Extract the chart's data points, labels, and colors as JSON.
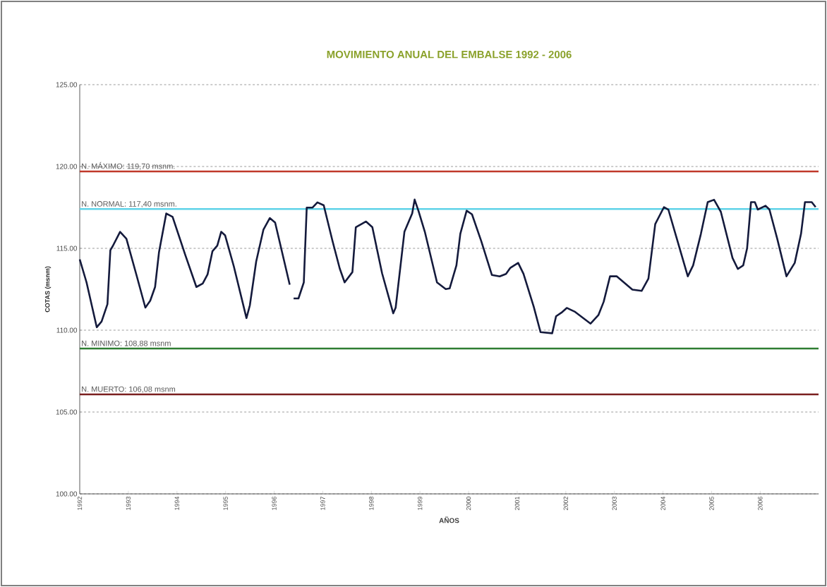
{
  "chart_data": {
    "type": "line",
    "title": "MOVIMIENTO ANUAL DEL EMBALSE 1992 - 2006",
    "xlabel": "AÑOS",
    "ylabel": "COTAS (msnm)",
    "xlim": [
      1992,
      2007.2
    ],
    "xticks": [
      1992,
      1993,
      1994,
      1995,
      1996,
      1997,
      1998,
      1999,
      2000,
      2001,
      2002,
      2003,
      2004,
      2005,
      2006
    ],
    "ylim": [
      100,
      125
    ],
    "yticks": [
      {
        "value": 100,
        "label": "100.00"
      },
      {
        "value": 105,
        "label": "105.00"
      },
      {
        "value": 110,
        "label": "110.00"
      },
      {
        "value": 115,
        "label": "115.00"
      },
      {
        "value": 120,
        "label": "120.00"
      },
      {
        "value": 125,
        "label": "125.00"
      }
    ],
    "grid": "y",
    "marker": "none",
    "line_style": "solid",
    "ref_lines": [
      {
        "axis": "y",
        "value": 119.7,
        "label": "N. MÁXIMO: 119,70 msnm.",
        "color": "#c0392b"
      },
      {
        "axis": "y",
        "value": 117.4,
        "label": "N. NORMAL: 117,40 msnm.",
        "color": "#5fd3e8"
      },
      {
        "axis": "y",
        "value": 108.88,
        "label": "N. MINIMO: 108,88 msnm",
        "color": "#2e7d32"
      },
      {
        "axis": "y",
        "value": 106.08,
        "label": "N. MUERTO: 106,08 msnm",
        "color": "#7a1f1f"
      }
    ],
    "series": [
      {
        "color": "#141a3c",
        "x": [
          1992.0,
          1992.14,
          1992.35,
          1992.45,
          1992.57,
          1992.63,
          1992.68,
          1992.83,
          1992.96,
          1993.17,
          1993.35,
          1993.45,
          1993.55,
          1993.63,
          1993.78,
          1993.91,
          1994.17,
          1994.4,
          1994.53,
          1994.63,
          1994.73,
          1994.83,
          1994.91,
          1994.99,
          1995.17,
          1995.43,
          1995.5,
          1995.63,
          1995.78,
          1995.91,
          1996.02,
          1996.32,
          1996.36,
          1996.4,
          1996.5,
          1996.61,
          1996.67,
          1996.79,
          1996.89,
          1997.02,
          1997.2,
          1997.35,
          1997.45,
          1997.61,
          1997.68,
          1997.89,
          1998.02,
          1998.22,
          1998.45,
          1998.5,
          1998.68,
          1998.84,
          1998.89,
          1998.97,
          1999.1,
          1999.35,
          1999.53,
          1999.61,
          1999.75,
          1999.83,
          1999.96,
          2000.07,
          2000.26,
          2000.48,
          2000.64,
          2000.77,
          2000.86,
          2001.02,
          2001.13,
          2001.34,
          2001.48,
          2001.72,
          2001.8,
          2001.91,
          2002.02,
          2002.18,
          2002.51,
          2002.67,
          2002.78,
          2002.91,
          2003.05,
          2003.37,
          2003.56,
          2003.7,
          2003.84,
          2004.02,
          2004.11,
          2004.27,
          2004.51,
          2004.62,
          2004.78,
          2004.92,
          2005.05,
          2005.19,
          2005.43,
          2005.54,
          2005.65,
          2005.73,
          2005.81,
          2005.89,
          2005.95,
          2006.11,
          2006.19,
          2006.35,
          2006.54,
          2006.71,
          2006.84,
          2006.92,
          2007.06,
          2007.14
        ],
        "values": [
          114.33,
          112.92,
          110.18,
          110.53,
          111.59,
          114.89,
          115.14,
          116.01,
          115.59,
          113.34,
          111.38,
          111.8,
          112.64,
          114.75,
          117.13,
          116.92,
          114.61,
          112.64,
          112.85,
          113.41,
          114.82,
          115.17,
          116.01,
          115.8,
          113.9,
          110.74,
          111.52,
          114.19,
          116.15,
          116.85,
          116.57,
          112.78,
          null,
          111.94,
          111.94,
          112.92,
          117.49,
          117.49,
          117.81,
          117.63,
          115.45,
          113.76,
          112.92,
          113.55,
          116.29,
          116.64,
          116.29,
          113.48,
          111.03,
          111.38,
          116.01,
          117.13,
          117.98,
          117.28,
          116.01,
          112.92,
          112.51,
          112.55,
          113.96,
          115.89,
          117.3,
          117.08,
          115.45,
          113.37,
          113.29,
          113.44,
          113.81,
          114.11,
          113.44,
          111.44,
          109.88,
          109.81,
          110.85,
          111.07,
          111.36,
          111.14,
          110.4,
          110.92,
          111.74,
          113.29,
          113.29,
          112.48,
          112.4,
          113.15,
          116.48,
          117.52,
          117.37,
          115.74,
          113.29,
          113.96,
          115.89,
          117.82,
          117.97,
          117.23,
          114.41,
          113.74,
          113.96,
          115.0,
          117.82,
          117.82,
          117.37,
          117.6,
          117.37,
          115.59,
          113.29,
          114.11,
          115.89,
          117.82,
          117.82,
          117.52
        ]
      }
    ]
  }
}
